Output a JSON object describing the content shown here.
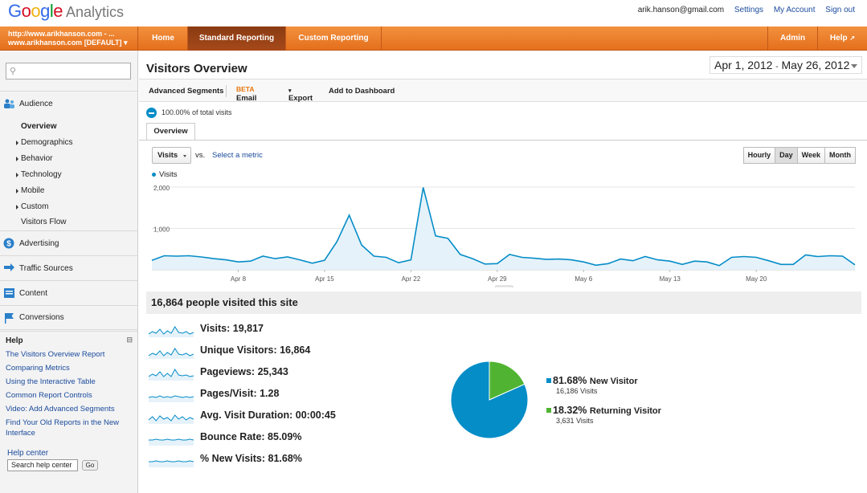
{
  "header": {
    "product": "Analytics",
    "user_email": "arik.hanson@gmail.com",
    "settings": "Settings",
    "my_account": "My Account",
    "sign_out": "Sign out"
  },
  "nav": {
    "account_line1": "http://www.arikhanson.com - ...",
    "account_line2": "www.arikhanson.com [DEFAULT]",
    "tabs": [
      "Home",
      "Standard Reporting",
      "Custom Reporting"
    ],
    "admin": "Admin",
    "help": "Help"
  },
  "sidebar": {
    "sections": [
      "Audience",
      "Advertising",
      "Traffic Sources",
      "Content",
      "Conversions"
    ],
    "audience_items": [
      "Overview",
      "Demographics",
      "Behavior",
      "Technology",
      "Mobile",
      "Custom",
      "Visitors Flow"
    ],
    "help_title": "Help",
    "help_links": [
      "The Visitors Overview Report",
      "Comparing Metrics",
      "Using the Interactive Table",
      "Common Report Controls",
      "Video: Add Advanced Segments",
      "Find Your Old Reports in the New Interface"
    ],
    "help_center": "Help center",
    "help_search_value": "Search help center",
    "go": "Go"
  },
  "main": {
    "title": "Visitors Overview",
    "date_start": "Apr 1, 2012",
    "date_sep": "-",
    "date_end": "May 26, 2012",
    "toolbar": {
      "advanced_segments": "Advanced Segments",
      "email": "Email",
      "beta": "BETA",
      "export": "Export",
      "add_to_dashboard": "Add to Dashboard"
    },
    "segment_text": "100.00% of total visits",
    "tab": "Overview",
    "metric": "Visits",
    "vs": "vs.",
    "select_metric": "Select a metric",
    "granularity": [
      "Hourly",
      "Day",
      "Week",
      "Month"
    ],
    "granularity_selected": "Day",
    "summary": "16,864 people visited this site",
    "metrics": [
      "Visits: 19,817",
      "Unique Visitors: 16,864",
      "Pageviews: 25,343",
      "Pages/Visit: 1.28",
      "Avg. Visit Duration: 00:00:45",
      "Bounce Rate: 85.09%",
      "% New Visits: 81.68%"
    ]
  },
  "colors": {
    "series": "#058dc7",
    "new_visitor": "#058dc7",
    "returning_visitor": "#50b432",
    "nav_orange": "#e8771e"
  },
  "chart_data": {
    "type": "area",
    "legend": [
      "Visits"
    ],
    "series": [
      {
        "name": "Visits",
        "values": [
          230,
          340,
          330,
          340,
          310,
          270,
          240,
          190,
          210,
          330,
          270,
          310,
          240,
          160,
          230,
          680,
          1320,
          600,
          330,
          300,
          170,
          240,
          1990,
          820,
          760,
          370,
          270,
          140,
          150,
          370,
          300,
          280,
          250,
          260,
          240,
          190,
          110,
          150,
          260,
          220,
          320,
          240,
          210,
          130,
          210,
          190,
          100,
          300,
          320,
          300,
          220,
          130,
          130,
          360,
          320,
          340,
          330,
          120
        ]
      }
    ],
    "x_ticks": [
      "Apr 8",
      "Apr 15",
      "Apr 22",
      "Apr 29",
      "May 6",
      "May 13",
      "May 20"
    ],
    "y_ticks": [
      "2,000",
      "1,000"
    ],
    "ylim": [
      0,
      2000
    ],
    "grid": true
  },
  "pie_data": {
    "type": "pie",
    "slices": [
      {
        "label": "New Visitor",
        "pct": 81.68,
        "pct_text": "81.68%",
        "count": "16,186 Visits"
      },
      {
        "label": "Returning Visitor",
        "pct": 18.32,
        "pct_text": "18.32%",
        "count": "3,631 Visits"
      }
    ]
  }
}
